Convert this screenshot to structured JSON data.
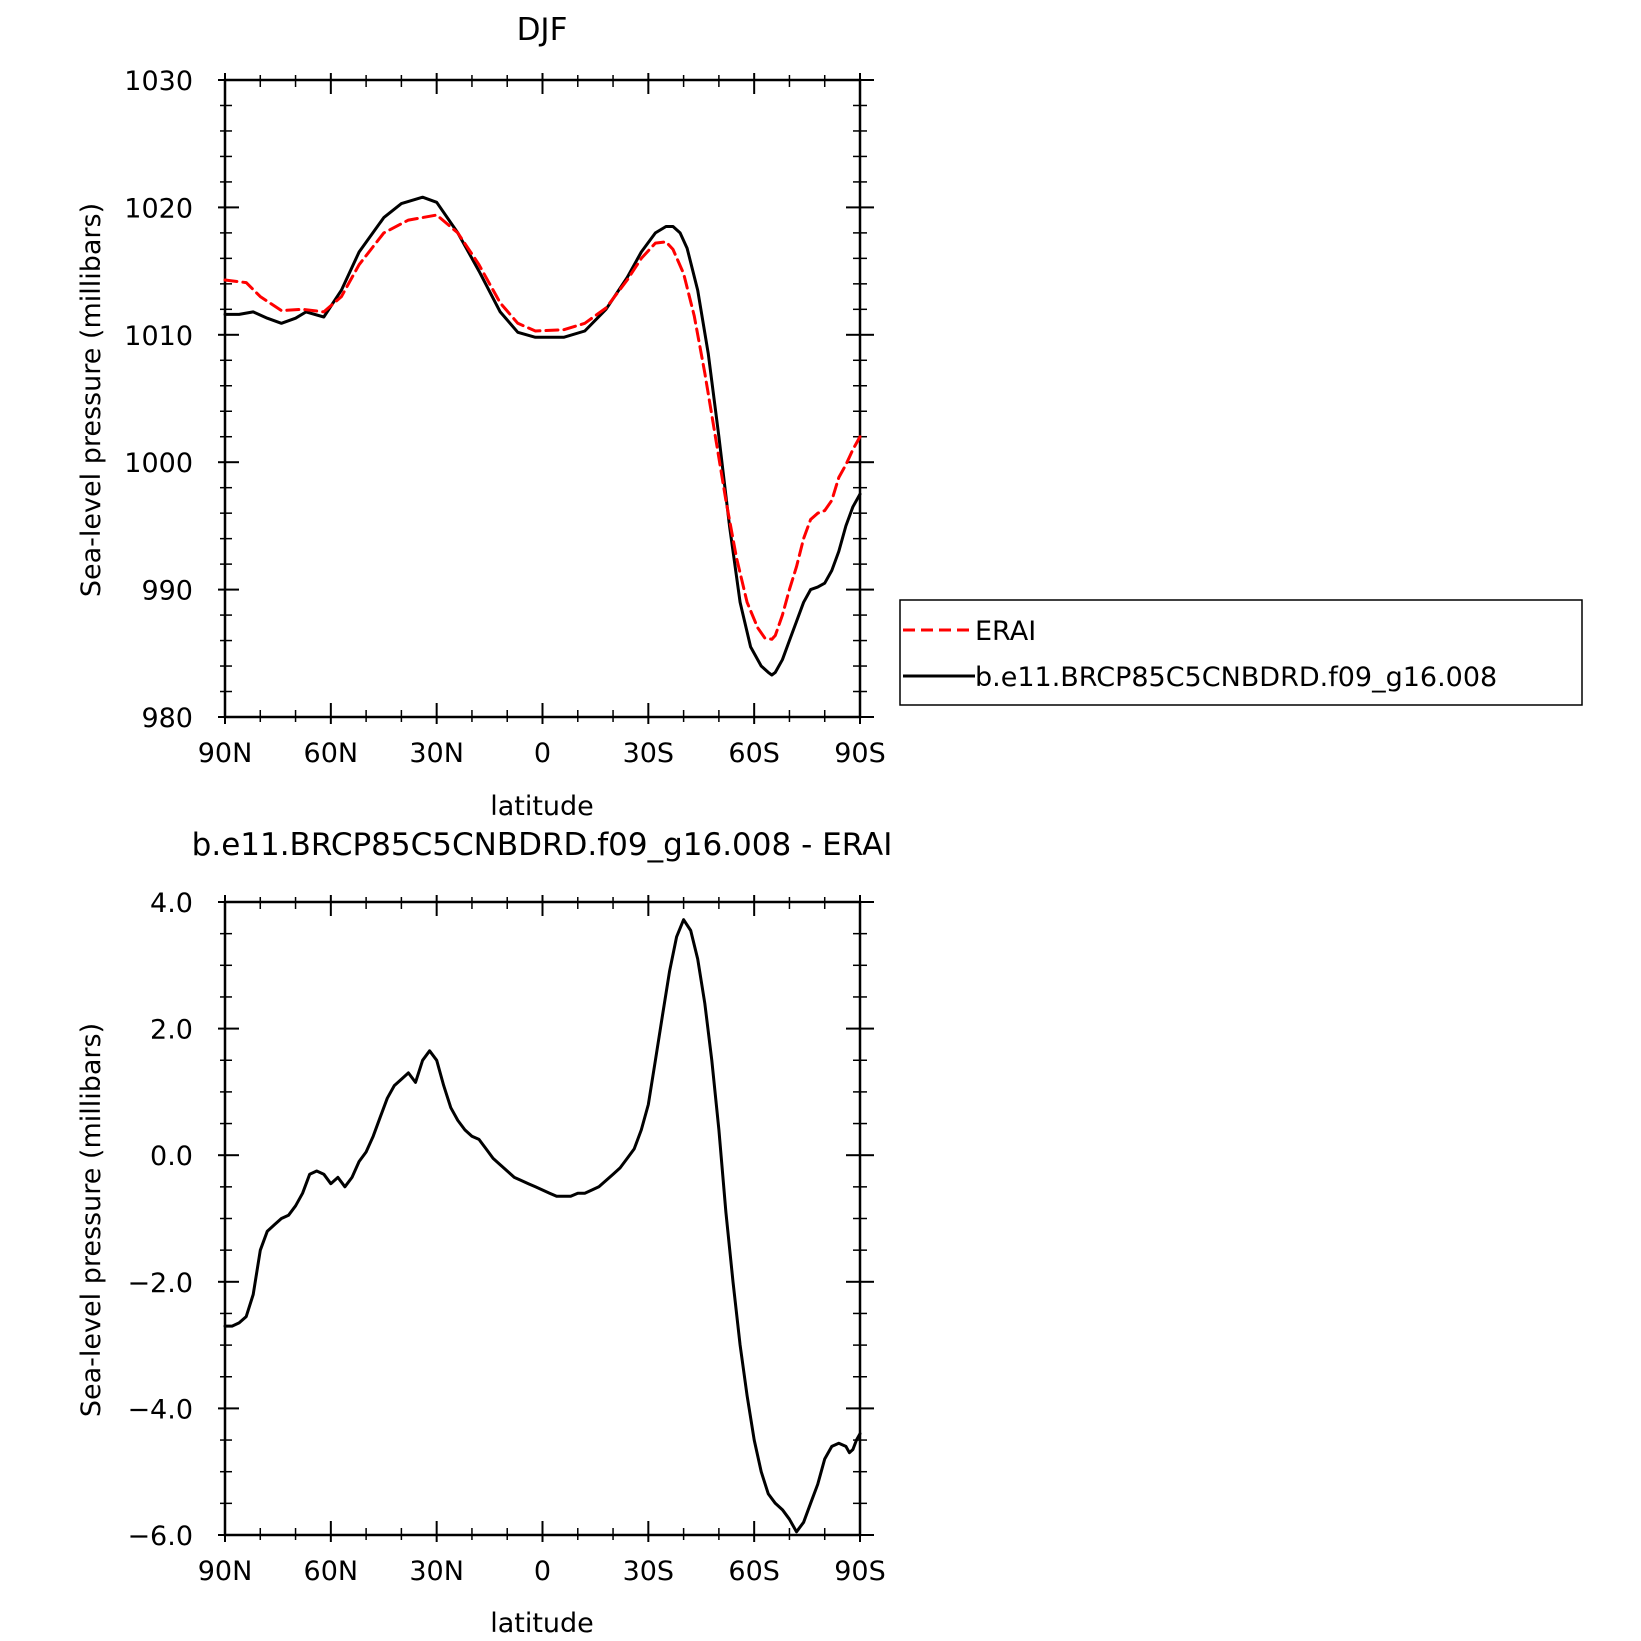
{
  "chart_data": [
    {
      "type": "line",
      "title": "DJF",
      "xlabel": "latitude",
      "ylabel": "Sea-level pressure (millibars)",
      "x_unit": "degrees latitude, + = N, - = S",
      "xlim": [
        90,
        -90
      ],
      "ylim": [
        980,
        1030
      ],
      "x_ticks": [
        90,
        60,
        30,
        0,
        -30,
        -60,
        -90
      ],
      "x_tick_labels": [
        "90N",
        "60N",
        "30N",
        "0",
        "30S",
        "60S",
        "90S"
      ],
      "y_ticks": [
        980,
        990,
        1000,
        1010,
        1020,
        1030
      ],
      "y_tick_labels": [
        "980",
        "990",
        "1000",
        "1010",
        "1020",
        "1030"
      ],
      "grid": false,
      "legend": "right, outside plot",
      "series": [
        {
          "name": "ERAI",
          "color": "#ff0000",
          "style": "dashed",
          "x": [
            90,
            84,
            80,
            74,
            68,
            62,
            57,
            52,
            45,
            38,
            30,
            24,
            18,
            12,
            7,
            2,
            -6,
            -12,
            -18,
            -24,
            -28,
            -32,
            -35,
            -37,
            -40,
            -43,
            -46,
            -49,
            -52,
            -55,
            -58,
            -61,
            -63,
            -65,
            -66,
            -68,
            -70,
            -72,
            -74,
            -76,
            -78,
            -80,
            -82,
            -84,
            -86,
            -88,
            -90
          ],
          "y": [
            1014.3,
            1014.1,
            1013.0,
            1011.9,
            1012.0,
            1011.8,
            1013.0,
            1015.5,
            1018.0,
            1019.0,
            1019.4,
            1018.0,
            1015.5,
            1012.5,
            1010.9,
            1010.3,
            1010.4,
            1010.9,
            1012.1,
            1014.3,
            1016.0,
            1017.2,
            1017.3,
            1016.7,
            1014.8,
            1011.5,
            1007.0,
            1002.0,
            997.0,
            992.5,
            989.0,
            987.0,
            986.2,
            986.1,
            986.4,
            988.0,
            990.0,
            991.8,
            994.0,
            995.5,
            996.0,
            996.2,
            997.0,
            998.8,
            999.8,
            1001.0,
            1002.0
          ]
        },
        {
          "name": "b.e11.BRCP85C5CNBDRD.f09_g16.008",
          "color": "#000000",
          "style": "solid",
          "x": [
            90,
            86,
            82,
            78,
            74,
            70,
            67,
            62,
            57,
            52,
            45,
            40,
            34,
            30,
            24,
            18,
            12,
            7,
            2,
            -6,
            -12,
            -18,
            -24,
            -28,
            -32,
            -35,
            -37,
            -39,
            -41,
            -44,
            -47,
            -50,
            -53,
            -56,
            -59,
            -62,
            -64,
            -65,
            -66,
            -68,
            -70,
            -72,
            -74,
            -76,
            -78,
            -80,
            -82,
            -84,
            -86,
            -88,
            -90
          ],
          "y": [
            1011.6,
            1011.6,
            1011.8,
            1011.3,
            1010.9,
            1011.3,
            1011.8,
            1011.4,
            1013.5,
            1016.5,
            1019.2,
            1020.3,
            1020.8,
            1020.4,
            1018.0,
            1015.0,
            1011.8,
            1010.2,
            1009.8,
            1009.8,
            1010.3,
            1012.0,
            1014.5,
            1016.5,
            1018.0,
            1018.5,
            1018.5,
            1018.0,
            1016.8,
            1013.5,
            1008.5,
            1002.0,
            995.0,
            989.0,
            985.5,
            984.0,
            983.5,
            983.3,
            983.5,
            984.5,
            986.0,
            987.5,
            989.0,
            990.0,
            990.2,
            990.5,
            991.5,
            993.0,
            995.0,
            996.5,
            997.5
          ]
        }
      ]
    },
    {
      "type": "line",
      "title": "b.e11.BRCP85C5CNBDRD.f09_g16.008 - ERAI",
      "xlabel": "latitude",
      "ylabel": "Sea-level pressure (millibars)",
      "x_unit": "degrees latitude, + = N, - = S",
      "xlim": [
        90,
        -90
      ],
      "ylim": [
        -6.0,
        4.0
      ],
      "x_ticks": [
        90,
        60,
        30,
        0,
        -30,
        -60,
        -90
      ],
      "x_tick_labels": [
        "90N",
        "60N",
        "30N",
        "0",
        "30S",
        "60S",
        "90S"
      ],
      "y_ticks": [
        -6.0,
        -4.0,
        -2.0,
        0.0,
        2.0,
        4.0
      ],
      "y_tick_labels": [
        "−6.0",
        "−4.0",
        "−2.0",
        "0.0",
        "2.0",
        "4.0"
      ],
      "grid": false,
      "series": [
        {
          "color": "#000000",
          "style": "solid",
          "x": [
            90,
            88,
            86,
            84,
            82,
            80,
            78,
            76,
            74,
            72,
            70,
            68,
            66,
            64,
            62,
            60,
            58,
            56,
            54,
            52,
            50,
            48,
            46,
            44,
            42,
            40,
            38,
            36,
            34,
            32,
            30,
            28,
            26,
            24,
            22,
            20,
            18,
            16,
            14,
            12,
            10,
            8,
            6,
            4,
            2,
            0,
            -2,
            -4,
            -6,
            -8,
            -10,
            -12,
            -14,
            -16,
            -18,
            -20,
            -22,
            -24,
            -26,
            -28,
            -30,
            -32,
            -34,
            -36,
            -38,
            -40,
            -42,
            -44,
            -46,
            -48,
            -50,
            -52,
            -54,
            -56,
            -58,
            -60,
            -62,
            -64,
            -66,
            -68,
            -70,
            -72,
            -74,
            -76,
            -78,
            -79,
            -80,
            -82,
            -84,
            -86,
            -87,
            -88,
            -89,
            -90
          ],
          "y": [
            -2.7,
            -2.7,
            -2.65,
            -2.55,
            -2.2,
            -1.5,
            -1.2,
            -1.1,
            -1.0,
            -0.95,
            -0.8,
            -0.6,
            -0.3,
            -0.25,
            -0.3,
            -0.45,
            -0.35,
            -0.5,
            -0.35,
            -0.1,
            0.05,
            0.3,
            0.6,
            0.9,
            1.1,
            1.2,
            1.3,
            1.15,
            1.5,
            1.65,
            1.5,
            1.1,
            0.75,
            0.55,
            0.4,
            0.3,
            0.25,
            0.1,
            -0.05,
            -0.15,
            -0.25,
            -0.35,
            -0.4,
            -0.45,
            -0.5,
            -0.55,
            -0.6,
            -0.65,
            -0.65,
            -0.65,
            -0.6,
            -0.6,
            -0.55,
            -0.5,
            -0.4,
            -0.3,
            -0.2,
            -0.05,
            0.1,
            0.4,
            0.8,
            1.5,
            2.2,
            2.9,
            3.45,
            3.72,
            3.55,
            3.1,
            2.4,
            1.5,
            0.4,
            -0.9,
            -2.0,
            -3.0,
            -3.8,
            -4.5,
            -5.0,
            -5.35,
            -5.5,
            -5.6,
            -5.75,
            -5.95,
            -5.8,
            -5.5,
            -5.2,
            -5.0,
            -4.8,
            -4.6,
            -4.55,
            -4.6,
            -4.7,
            -4.65,
            -4.5,
            -4.4
          ]
        }
      ]
    }
  ]
}
